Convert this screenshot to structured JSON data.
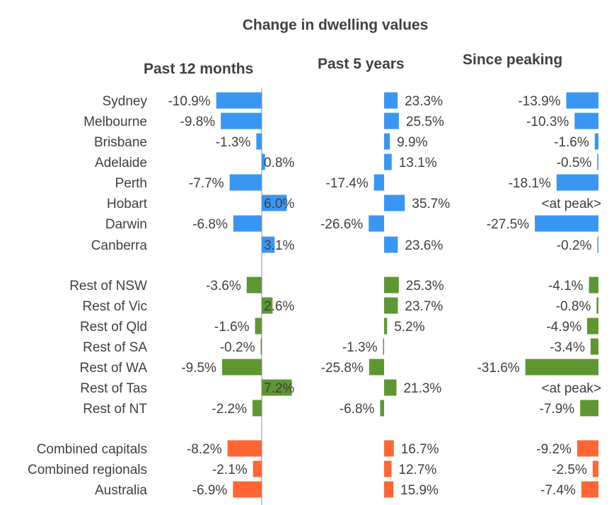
{
  "chart_data": {
    "type": "bar",
    "title": "Change in dwelling values",
    "categories": [
      "Sydney",
      "Melbourne",
      "Brisbane",
      "Adelaide",
      "Perth",
      "Hobart",
      "Darwin",
      "Canberra",
      "Rest of NSW",
      "Rest of Vic",
      "Rest of Qld",
      "Rest of SA",
      "Rest of WA",
      "Rest of Tas",
      "Rest of NT",
      "Combined capitals",
      "Combined regionals",
      "Australia"
    ],
    "groups": [
      "capitals",
      "capitals",
      "capitals",
      "capitals",
      "capitals",
      "capitals",
      "capitals",
      "capitals",
      "regional",
      "regional",
      "regional",
      "regional",
      "regional",
      "regional",
      "regional",
      "aggregate",
      "aggregate",
      "aggregate"
    ],
    "group_colors": {
      "capitals": "#3A96F3",
      "regional": "#5E9632",
      "aggregate": "#FF6633"
    },
    "at_peak_label": "<at peak>",
    "series": [
      {
        "name": "Past 12 months",
        "unit": "%",
        "values": [
          -10.9,
          -9.8,
          -1.3,
          0.8,
          -7.7,
          6.0,
          -6.8,
          3.1,
          -3.6,
          2.6,
          -1.6,
          -0.2,
          -9.5,
          7.2,
          -2.2,
          -8.2,
          -2.1,
          -6.9
        ]
      },
      {
        "name": "Past 5 years",
        "unit": "%",
        "values": [
          23.3,
          25.5,
          9.9,
          13.1,
          -17.4,
          35.7,
          -26.6,
          23.6,
          25.3,
          23.7,
          5.2,
          -1.3,
          -25.8,
          21.3,
          -6.8,
          16.7,
          12.7,
          15.9
        ]
      },
      {
        "name": "Since peaking",
        "unit": "%",
        "values": [
          -13.9,
          -10.3,
          -1.6,
          -0.5,
          -18.1,
          null,
          -27.5,
          -0.2,
          -4.1,
          -0.8,
          -4.9,
          -3.4,
          -31.6,
          null,
          -7.9,
          -9.2,
          -2.5,
          -7.4
        ]
      }
    ]
  }
}
